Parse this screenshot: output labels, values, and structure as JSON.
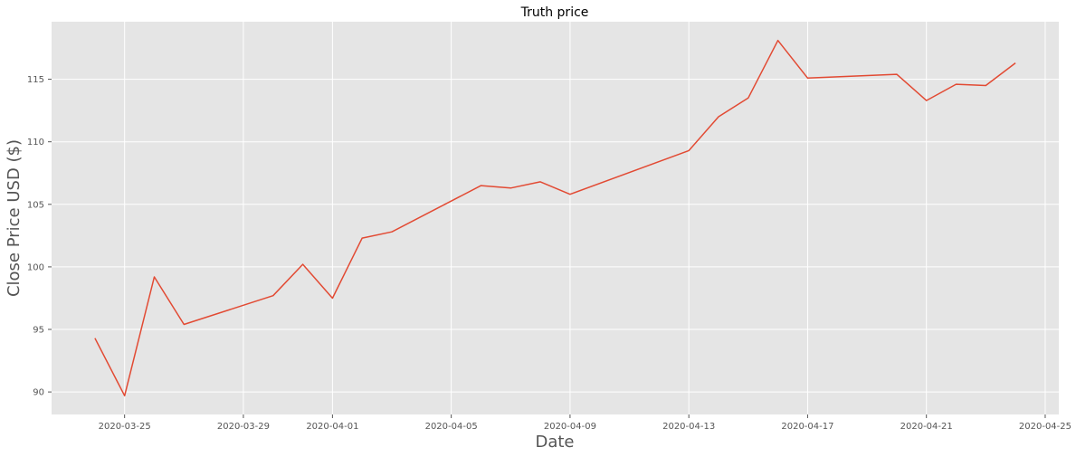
{
  "chart_data": {
    "type": "line",
    "title": "Truth price",
    "xlabel": "Date",
    "ylabel": "Close Price USD ($)",
    "xlim": [
      "2020-03-22T13:00",
      "2020-04-25T11:00"
    ],
    "ylim": [
      88.2,
      119.6
    ],
    "xticks": [
      "2020-03-25",
      "2020-03-29",
      "2020-04-01",
      "2020-04-05",
      "2020-04-09",
      "2020-04-13",
      "2020-04-17",
      "2020-04-21",
      "2020-04-25"
    ],
    "yticks": [
      90,
      95,
      100,
      105,
      110,
      115
    ],
    "grid": true,
    "legend": "none",
    "colors": {
      "line": "#E24A33",
      "plot_background": "#E5E5E5",
      "grid": "#FFFFFF",
      "text": "#555555"
    },
    "series": [
      {
        "x": [
          "2020-03-24",
          "2020-03-25",
          "2020-03-26",
          "2020-03-27",
          "2020-03-30",
          "2020-03-31",
          "2020-04-01",
          "2020-04-02",
          "2020-04-03",
          "2020-04-06",
          "2020-04-07",
          "2020-04-08",
          "2020-04-09",
          "2020-04-13",
          "2020-04-14",
          "2020-04-15",
          "2020-04-16",
          "2020-04-17",
          "2020-04-20",
          "2020-04-21",
          "2020-04-22",
          "2020-04-23",
          "2020-04-24"
        ],
        "y": [
          94.3,
          89.7,
          99.2,
          95.4,
          97.7,
          100.2,
          97.5,
          102.3,
          102.8,
          106.5,
          106.3,
          106.8,
          105.8,
          109.3,
          112.0,
          113.5,
          118.1,
          115.1,
          115.4,
          113.3,
          114.6,
          114.5,
          116.3
        ]
      }
    ]
  }
}
